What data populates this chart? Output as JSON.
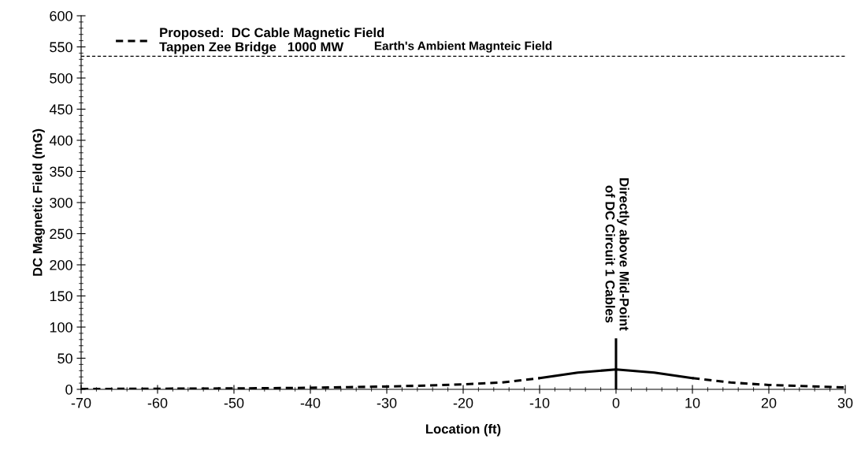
{
  "chart_data": {
    "type": "line",
    "xlabel": "Location (ft)",
    "ylabel": "DC Magnetic Field (mG)",
    "x": [
      -70,
      -65,
      -60,
      -55,
      -50,
      -45,
      -40,
      -35,
      -30,
      -25,
      -20,
      -15,
      -10,
      -5,
      0,
      5,
      10,
      15,
      20,
      25,
      30
    ],
    "series": [
      {
        "name": "Proposed:  DC Cable Magnetic Field\nTappen Zee Bridge   1000 MW",
        "color": "#000000",
        "line_style": "dashed",
        "values": [
          0.5,
          0.8,
          1,
          1.2,
          1.5,
          2,
          2.5,
          3.5,
          4.5,
          6,
          8,
          11,
          18,
          null,
          null,
          null,
          18,
          11,
          7,
          5,
          3
        ]
      },
      {
        "color": "#000000",
        "line_style": "solid",
        "x": [
          -10,
          -5,
          0,
          5,
          10
        ],
        "values": [
          18,
          27,
          32,
          27,
          18
        ]
      },
      {
        "color": "#000000",
        "line_style": "solid",
        "x": [
          0,
          0
        ],
        "values": [
          0,
          80
        ]
      }
    ],
    "xlim": [
      -70,
      30
    ],
    "xticks": [
      -70,
      -60,
      -50,
      -40,
      -30,
      -20,
      -10,
      0,
      10,
      20,
      30
    ],
    "ylim": [
      0,
      600
    ],
    "yticks": [
      0,
      50,
      100,
      150,
      200,
      250,
      300,
      350,
      400,
      450,
      500,
      550,
      600
    ],
    "ref_lines": [
      {
        "axis": "y",
        "value": 535,
        "label": "Earth's Ambient Magnteic Field",
        "color": "#000000",
        "line_style": "dashed"
      }
    ],
    "annotations": [
      {
        "text": "Directly above Mid-Point\nof DC Circuit 1 Cables",
        "x": 0,
        "y": 80
      }
    ],
    "legend": "top left",
    "grid": false,
    "marker": "none"
  }
}
